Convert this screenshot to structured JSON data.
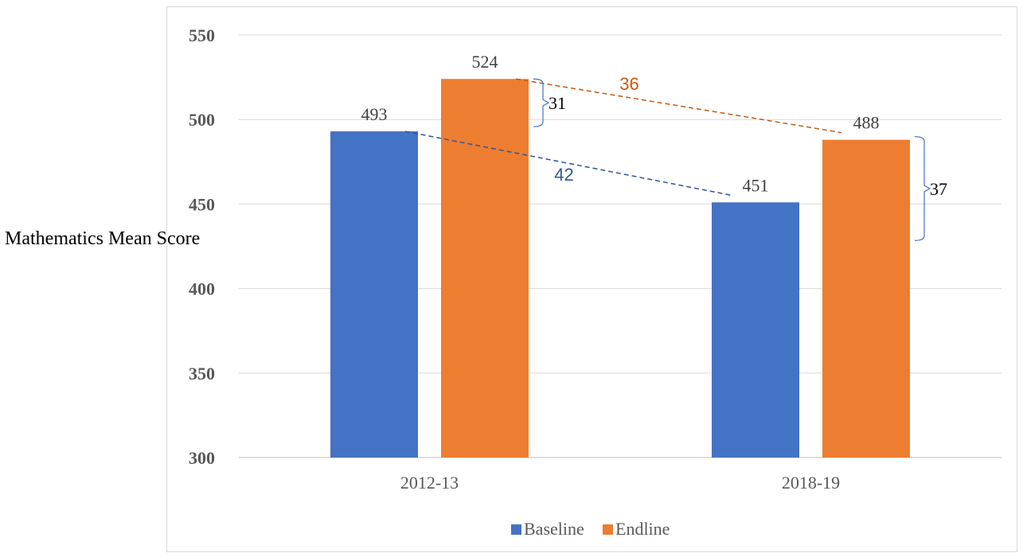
{
  "chart_data": {
    "type": "bar",
    "title": "",
    "xlabel": "",
    "ylabel": "Mathematics Mean Score",
    "ylim": [
      300,
      550
    ],
    "yticks": [
      300,
      350,
      400,
      450,
      500,
      550
    ],
    "grid": true,
    "legend_position": "bottom",
    "categories": [
      "2012-13",
      "2018-19"
    ],
    "series": [
      {
        "name": "Baseline",
        "values": [
          493,
          451
        ],
        "labels": [
          "493",
          "451"
        ],
        "color": "#4472C4"
      },
      {
        "name": "Endline",
        "values": [
          524,
          488
        ],
        "labels": [
          "524",
          "488"
        ],
        "color": "#ED7D31"
      }
    ],
    "annotations": {
      "gaps": [
        {
          "category": "2012-13",
          "text": "31"
        },
        {
          "category": "2018-19",
          "text": "37"
        }
      ],
      "trends": [
        {
          "series": "Baseline",
          "text": "42",
          "color": "#2F5597"
        },
        {
          "series": "Endline",
          "text": "36",
          "color": "#C55A11"
        }
      ]
    }
  }
}
